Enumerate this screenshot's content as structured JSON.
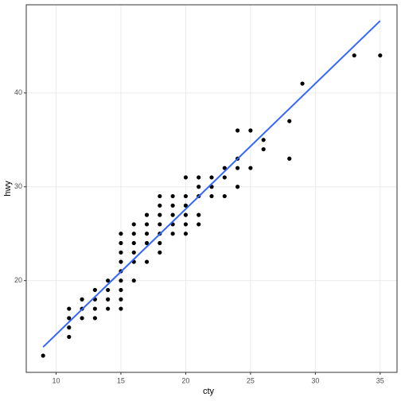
{
  "chart_data": {
    "type": "scatter",
    "x_label": "cty",
    "y_label": "hwy",
    "xlim": [
      7.7,
      36.3
    ],
    "ylim": [
      10.22,
      49.4
    ],
    "xticks": [
      10,
      15,
      20,
      25,
      30,
      35
    ],
    "yticks": [
      20,
      30,
      40
    ],
    "grid": true,
    "series": [
      {
        "type": "scatter",
        "color": "#000000",
        "x": [
          9,
          11,
          11,
          11,
          11,
          12,
          12,
          12,
          13,
          13,
          13,
          13,
          14,
          14,
          14,
          14,
          15,
          15,
          15,
          15,
          15,
          15,
          15,
          15,
          15,
          16,
          16,
          16,
          16,
          16,
          16,
          17,
          17,
          17,
          17,
          17,
          18,
          18,
          18,
          18,
          18,
          18,
          18,
          19,
          19,
          19,
          19,
          19,
          20,
          20,
          20,
          20,
          20,
          20,
          21,
          21,
          21,
          21,
          21,
          22,
          22,
          22,
          23,
          23,
          23,
          24,
          24,
          24,
          24,
          25,
          25,
          26,
          26,
          28,
          28,
          29,
          33,
          35
        ],
        "values": [
          12,
          14,
          15,
          16,
          17,
          16,
          17,
          18,
          16,
          17,
          18,
          19,
          17,
          18,
          19,
          20,
          17,
          18,
          19,
          20,
          21,
          22,
          23,
          24,
          25,
          20,
          22,
          23,
          24,
          25,
          26,
          22,
          24,
          25,
          26,
          27,
          23,
          24,
          25,
          26,
          27,
          28,
          29,
          25,
          26,
          27,
          28,
          29,
          25,
          26,
          27,
          28,
          29,
          31,
          26,
          27,
          29,
          30,
          31,
          29,
          30,
          31,
          29,
          31,
          32,
          30,
          32,
          33,
          36,
          32,
          36,
          34,
          35,
          33,
          37,
          41,
          44,
          44
        ]
      },
      {
        "type": "line",
        "color": "#3366ff",
        "x": [
          9,
          35
        ],
        "values": [
          12.92,
          47.69
        ]
      }
    ]
  }
}
